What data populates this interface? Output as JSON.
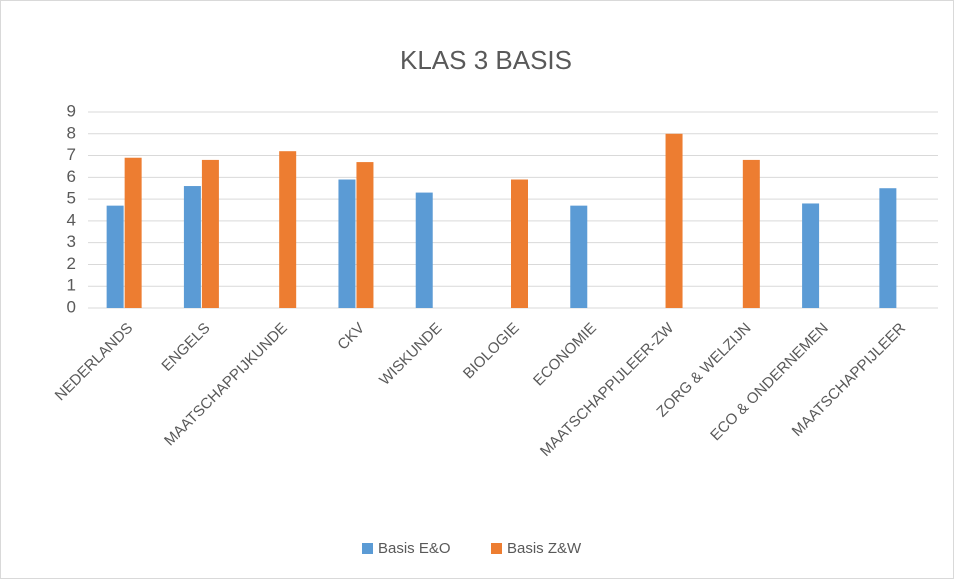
{
  "chart_data": {
    "type": "bar",
    "title": "KLAS 3 BASIS",
    "categories": [
      "NEDERLANDS",
      "ENGELS",
      "MAATSCHAPPIJKUNDE",
      "CKV",
      "WISKUNDE",
      "BIOLOGIE",
      "ECONOMIE",
      "MAATSCHAPPIJLEER-ZW",
      "ZORG & WELZIJN",
      "ECO & ONDERNEMEN",
      "MAATSCHAPPIJLEER"
    ],
    "series": [
      {
        "name": "Basis E&O",
        "color": "#5b9bd5",
        "values": [
          4.7,
          5.6,
          null,
          5.9,
          5.3,
          null,
          4.7,
          null,
          null,
          4.8,
          5.5
        ]
      },
      {
        "name": "Basis Z&W",
        "color": "#ed7d31",
        "values": [
          6.9,
          6.8,
          7.2,
          6.7,
          null,
          5.9,
          null,
          8.0,
          6.8,
          null,
          null
        ]
      }
    ],
    "ylim": [
      0,
      9
    ],
    "yticks": [
      0,
      1,
      2,
      3,
      4,
      5,
      6,
      7,
      8,
      9
    ],
    "grid": true,
    "legend": "bottom"
  }
}
